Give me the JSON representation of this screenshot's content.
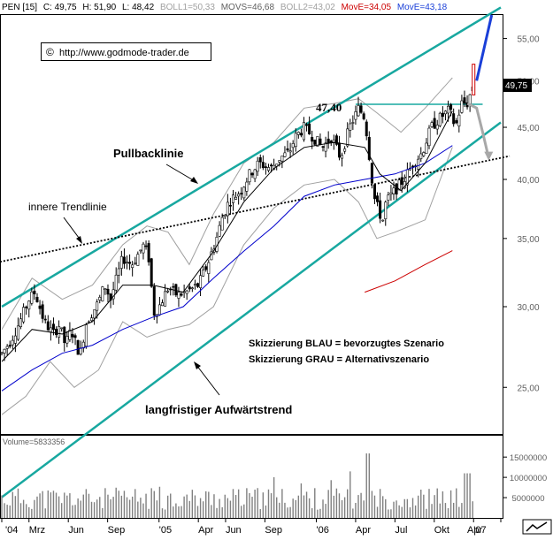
{
  "header": {
    "symbol": "PEN [15]",
    "close": "C: 49,75",
    "high": "H: 51,90",
    "low": "L: 48,42",
    "boll1": "BOLL1=50,33",
    "movs": "MOVS=46,68",
    "boll2": "BOLL2=43,02",
    "move1": "MovE=34,05",
    "move2": "MovE=43,18"
  },
  "watermark": {
    "copyright_symbol": "©",
    "text": "http://www.godmode-trader.de"
  },
  "price_tag": "49,75",
  "annotations": {
    "level": "47,40",
    "pullback": "Pullbacklinie",
    "inner_trend": "innere Trendlinie",
    "long_trend": "langfristiger Aufwärtstrend",
    "legend_blue": "Skizzierung BLAU = bevorzugtes Szenario",
    "legend_gray": "Skizzierung GRAU = Alternativszenario"
  },
  "volume_label": "Volume=5833356",
  "colors": {
    "channel": "#18a8a0",
    "candle": "#000000",
    "up_candle": "#ffffff",
    "ma_blue": "#0000cc",
    "ma_red": "#cc0000",
    "band_gray": "#a0a0a0",
    "scenario_blue": "#1a3fd8",
    "scenario_gray": "#a8a8a8",
    "header_red": "#cc0000",
    "header_blue": "#1a3fd8",
    "volume_bar": "#808080"
  },
  "chart_data": {
    "type": "candlestick",
    "title": "PEN [15]",
    "y_scale": "log",
    "ylim": [
      22.5,
      58
    ],
    "y_ticks": [
      {
        "v": 25,
        "label": "25,00"
      },
      {
        "v": 30,
        "label": "30,00"
      },
      {
        "v": 35,
        "label": "35,00"
      },
      {
        "v": 40,
        "label": "40,00"
      },
      {
        "v": 45,
        "label": "45,00"
      },
      {
        "v": 50,
        "label": "50,00"
      },
      {
        "v": 55,
        "label": "55,00"
      }
    ],
    "x_labels": [
      "'04",
      "Mrz",
      "Jun",
      "Sep",
      "'05",
      "Apr",
      "Jun",
      "Sep",
      "'06",
      "Apr",
      "Jul",
      "Okt",
      "'07",
      "Apr"
    ],
    "x_range_weeks": [
      0,
      165
    ],
    "price_anchors": [
      [
        0,
        27.0
      ],
      [
        3,
        27.8
      ],
      [
        6,
        29.0
      ],
      [
        9,
        30.5
      ],
      [
        11,
        31.0
      ],
      [
        14,
        29.0
      ],
      [
        17,
        28.2
      ],
      [
        19,
        28.8
      ],
      [
        21,
        27.5
      ],
      [
        23,
        28.5
      ],
      [
        25,
        27.3
      ],
      [
        26,
        27.0
      ],
      [
        28,
        29.0
      ],
      [
        32,
        30.3
      ],
      [
        34,
        31.5
      ],
      [
        36,
        30.5
      ],
      [
        40,
        33.5
      ],
      [
        43,
        33.0
      ],
      [
        47,
        34.5
      ],
      [
        49,
        33.2
      ],
      [
        50,
        29.5
      ],
      [
        52,
        30.0
      ],
      [
        55,
        31.3
      ],
      [
        58,
        30.8
      ],
      [
        61,
        31.0
      ],
      [
        65,
        31.5
      ],
      [
        68,
        33.0
      ],
      [
        71,
        35.0
      ],
      [
        73,
        36.8
      ],
      [
        75,
        38.0
      ],
      [
        79,
        39.0
      ],
      [
        82,
        40.5
      ],
      [
        85,
        41.5
      ],
      [
        89,
        41.0
      ],
      [
        92,
        42.0
      ],
      [
        95,
        42.5
      ],
      [
        97,
        44.0
      ],
      [
        100,
        45.0
      ],
      [
        103,
        44.0
      ],
      [
        106,
        43.0
      ],
      [
        109,
        44.0
      ],
      [
        112,
        42.0
      ],
      [
        115,
        45.0
      ],
      [
        118,
        47.0
      ],
      [
        120,
        46.0
      ],
      [
        122,
        41.0
      ],
      [
        123,
        38.5
      ],
      [
        125,
        37.0
      ],
      [
        126,
        36.5
      ],
      [
        127,
        38.0
      ],
      [
        130,
        39.0
      ],
      [
        133,
        40.0
      ],
      [
        136,
        41.5
      ],
      [
        139,
        42.5
      ],
      [
        142,
        45.0
      ],
      [
        145,
        46.0
      ],
      [
        148,
        46.8
      ],
      [
        150,
        45.0
      ],
      [
        152,
        47.5
      ],
      [
        154,
        47.5
      ],
      [
        156,
        49.75
      ]
    ],
    "series": [
      {
        "name": "MovE=34,05",
        "kind": "ma_red",
        "points": [
          [
            120,
            31.0
          ],
          [
            130,
            31.8
          ],
          [
            140,
            33.0
          ],
          [
            149,
            34.05
          ]
        ]
      },
      {
        "name": "MovE=43,18",
        "kind": "ma_blue",
        "points": [
          [
            0,
            24.8
          ],
          [
            10,
            26.0
          ],
          [
            20,
            27.0
          ],
          [
            30,
            27.5
          ],
          [
            40,
            28.5
          ],
          [
            50,
            29.3
          ],
          [
            60,
            30.0
          ],
          [
            70,
            32.0
          ],
          [
            80,
            34.0
          ],
          [
            90,
            36.0
          ],
          [
            100,
            38.5
          ],
          [
            110,
            39.5
          ],
          [
            120,
            40.0
          ],
          [
            130,
            40.5
          ],
          [
            140,
            41.5
          ],
          [
            149,
            43.18
          ]
        ]
      },
      {
        "name": "MOVS=46,68",
        "kind": "ma_black",
        "points": [
          [
            0,
            26.5
          ],
          [
            10,
            28.5
          ],
          [
            20,
            28.2
          ],
          [
            30,
            29.0
          ],
          [
            40,
            31.5
          ],
          [
            50,
            31.5
          ],
          [
            60,
            31.0
          ],
          [
            70,
            34.0
          ],
          [
            80,
            38.0
          ],
          [
            90,
            41.0
          ],
          [
            100,
            43.0
          ],
          [
            110,
            43.5
          ],
          [
            120,
            43.0
          ],
          [
            125,
            40.5
          ],
          [
            132,
            39.0
          ],
          [
            140,
            41.5
          ],
          [
            149,
            46.68
          ]
        ]
      },
      {
        "name": "BOLL1=50,33",
        "kind": "band_upper",
        "points": [
          [
            0,
            28.5
          ],
          [
            10,
            32.0
          ],
          [
            20,
            30.5
          ],
          [
            30,
            31.5
          ],
          [
            40,
            34.5
          ],
          [
            48,
            36.0
          ],
          [
            55,
            35.5
          ],
          [
            62,
            33.0
          ],
          [
            70,
            37.0
          ],
          [
            80,
            41.5
          ],
          [
            90,
            43.5
          ],
          [
            100,
            47.0
          ],
          [
            110,
            47.5
          ],
          [
            118,
            48.0
          ],
          [
            124,
            46.5
          ],
          [
            132,
            44.5
          ],
          [
            140,
            47.0
          ],
          [
            149,
            50.33
          ]
        ]
      },
      {
        "name": "BOLL2=43,02",
        "kind": "band_lower",
        "points": [
          [
            0,
            23.5
          ],
          [
            8,
            24.5
          ],
          [
            16,
            26.5
          ],
          [
            24,
            25.0
          ],
          [
            32,
            26.0
          ],
          [
            40,
            29.0
          ],
          [
            48,
            28.0
          ],
          [
            55,
            28.5
          ],
          [
            62,
            28.8
          ],
          [
            70,
            30.0
          ],
          [
            80,
            34.5
          ],
          [
            90,
            37.5
          ],
          [
            100,
            39.5
          ],
          [
            110,
            40.0
          ],
          [
            118,
            38.0
          ],
          [
            124,
            35.0
          ],
          [
            130,
            35.5
          ],
          [
            140,
            36.5
          ],
          [
            149,
            43.02
          ]
        ]
      }
    ],
    "channel_lines": [
      {
        "name": "Pullbacklinie",
        "points": [
          [
            0,
            30.0
          ],
          [
            165,
            59.0
          ]
        ]
      },
      {
        "name": "langfristiger Aufwärtstrend",
        "points": [
          [
            0,
            19.5
          ],
          [
            165,
            45.5
          ]
        ]
      },
      {
        "name": "innere Trendlinie",
        "points": [
          [
            0,
            33.2
          ],
          [
            165,
            42.0
          ]
        ]
      }
    ],
    "resistance": {
      "value": 47.4,
      "label": "47,40",
      "from_week": 117,
      "to_week": 159
    },
    "scenario_blue": [
      [
        157,
        50.0
      ],
      [
        162,
        58.0
      ]
    ],
    "scenario_gray": [
      [
        154,
        47.5
      ],
      [
        157,
        47.0
      ],
      [
        159,
        44.5
      ],
      [
        161,
        42.0
      ]
    ],
    "volume": {
      "ylim": [
        0,
        17000000
      ],
      "ticks": [
        {
          "v": 5000000,
          "label": "5000000"
        },
        {
          "v": 10000000,
          "label": "10000000"
        },
        {
          "v": 15000000,
          "label": "15000000"
        }
      ],
      "last": 5833356
    }
  }
}
